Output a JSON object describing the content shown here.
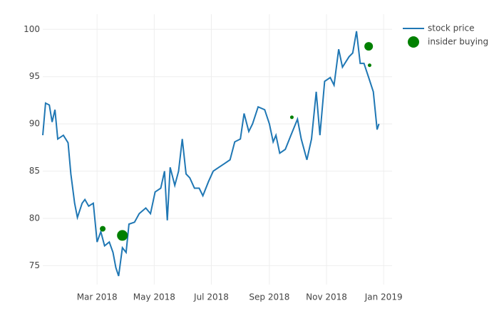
{
  "chart_data": {
    "type": "line",
    "xlim": [
      "2018-01-02",
      "2019-01-10"
    ],
    "ylim": [
      73,
      101.6
    ],
    "xticks": [
      {
        "value": "2018-03-01",
        "label": "Mar 2018"
      },
      {
        "value": "2018-05-01",
        "label": "May 2018"
      },
      {
        "value": "2018-07-01",
        "label": "Jul 2018"
      },
      {
        "value": "2018-09-01",
        "label": "Sep 2018"
      },
      {
        "value": "2018-11-01",
        "label": "Nov 2018"
      },
      {
        "value": "2019-01-01",
        "label": "Jan 2019"
      }
    ],
    "yticks": [
      75,
      80,
      85,
      90,
      95,
      100
    ],
    "grid": true,
    "legend": "top-right",
    "series": [
      {
        "name": "stock price",
        "type": "line",
        "color": "#1f77b4",
        "x": [
          "2018-01-02",
          "2018-01-05",
          "2018-01-09",
          "2018-01-12",
          "2018-01-15",
          "2018-01-18",
          "2018-01-24",
          "2018-01-29",
          "2018-02-01",
          "2018-02-05",
          "2018-02-08",
          "2018-02-13",
          "2018-02-16",
          "2018-02-20",
          "2018-02-25",
          "2018-03-01",
          "2018-03-05",
          "2018-03-09",
          "2018-03-14",
          "2018-03-18",
          "2018-03-21",
          "2018-03-24",
          "2018-03-28",
          "2018-04-01",
          "2018-04-04",
          "2018-04-10",
          "2018-04-15",
          "2018-04-22",
          "2018-04-27",
          "2018-05-02",
          "2018-05-08",
          "2018-05-12",
          "2018-05-15",
          "2018-05-18",
          "2018-05-23",
          "2018-05-27",
          "2018-05-31",
          "2018-06-04",
          "2018-06-08",
          "2018-06-13",
          "2018-06-18",
          "2018-06-22",
          "2018-06-28",
          "2018-07-03",
          "2018-07-09",
          "2018-07-15",
          "2018-07-21",
          "2018-07-26",
          "2018-08-01",
          "2018-08-05",
          "2018-08-10",
          "2018-08-14",
          "2018-08-20",
          "2018-08-27",
          "2018-09-01",
          "2018-09-05",
          "2018-09-08",
          "2018-09-12",
          "2018-09-18",
          "2018-09-24",
          "2018-10-01",
          "2018-10-05",
          "2018-10-11",
          "2018-10-16",
          "2018-10-21",
          "2018-10-25",
          "2018-10-30",
          "2018-11-05",
          "2018-11-09",
          "2018-11-14",
          "2018-11-18",
          "2018-11-25",
          "2018-11-29",
          "2018-12-03",
          "2018-12-07",
          "2018-12-11",
          "2018-12-16",
          "2018-12-21",
          "2018-12-25",
          "2018-12-27"
        ],
        "values": [
          88.8,
          92.2,
          92,
          90.2,
          91.5,
          88.4,
          88.8,
          88,
          84.7,
          81.6,
          80.1,
          81.6,
          82,
          81.3,
          81.6,
          77.5,
          78.6,
          77.1,
          77.5,
          76.4,
          74.8,
          73.9,
          76.9,
          76.4,
          79.4,
          79.6,
          80.5,
          81.1,
          80.5,
          82.8,
          83.2,
          85,
          79.8,
          85.4,
          83.5,
          85,
          88.4,
          84.7,
          84.3,
          83.2,
          83.2,
          82.4,
          83.9,
          85,
          85.4,
          85.8,
          86.2,
          88.1,
          88.4,
          91.1,
          89.2,
          90,
          91.8,
          91.5,
          90,
          88.1,
          88.8,
          86.9,
          87.3,
          88.8,
          90.5,
          88.4,
          86.2,
          88.4,
          93.4,
          88.8,
          94.5,
          94.9,
          94.1,
          97.9,
          96,
          97.1,
          97.5,
          99.8,
          96.4,
          96.4,
          94.9,
          93.4,
          89.4,
          90
        ]
      },
      {
        "name": "insider buying",
        "type": "scatter",
        "color": "green",
        "x": [
          "2018-03-07",
          "2018-03-28",
          "2018-09-25",
          "2018-12-16",
          "2018-12-17"
        ],
        "values": [
          78.9,
          78.2,
          90.7,
          98.2,
          96.2
        ],
        "sizes": [
          8,
          15,
          5,
          12,
          5
        ]
      }
    ]
  }
}
